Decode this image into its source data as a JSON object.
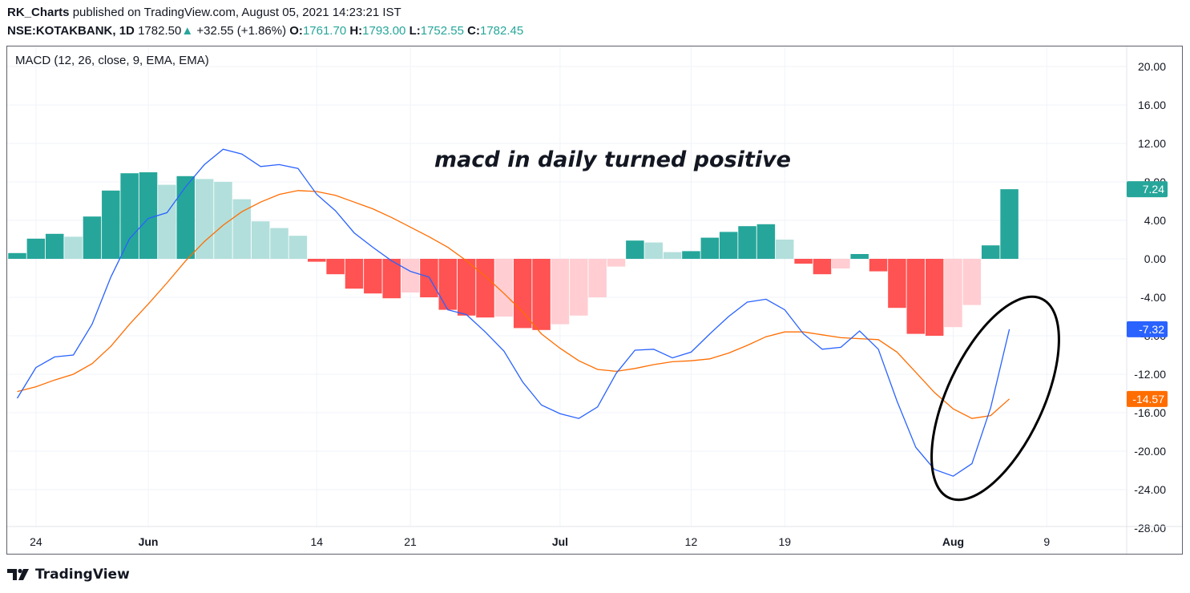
{
  "header": {
    "author": "RK_Charts",
    "published_text": " published on TradingView.com, August 05, 2021 14:23:21 IST",
    "symbol": "NSE:KOTAKBANK, 1D",
    "price": "1782.50",
    "change_arrow": "▲",
    "change": "+32.55 (+1.86%)",
    "open_label": "O:",
    "open": "1761.70",
    "high_label": "H:",
    "high": "1793.00",
    "low_label": "L:",
    "low": "1752.55",
    "close_label": "C:",
    "close": "1782.45"
  },
  "indicator_label": "MACD (12, 26, close, 9, EMA, EMA)",
  "annotation_text": "macd in daily turned positive",
  "footer": {
    "brand": "TradingView",
    "logo_icon": "tradingview-logo-icon"
  },
  "colors": {
    "macd_line": "#2962ff",
    "signal_line": "#ff6d00",
    "hist_pos_strong": "#26a69a",
    "hist_pos_weak": "#b2dfdb",
    "hist_neg_strong": "#ff5252",
    "hist_neg_weak": "#ffcdd2",
    "axis_text": "#131722",
    "grid": "#f0f3fa"
  },
  "chart_data": {
    "type": "bar+line",
    "title": "MACD (12, 26, close, 9, EMA, EMA)",
    "y_ticks": [
      "20.00",
      "16.00",
      "12.00",
      "8.00",
      "4.00",
      "0.00",
      "-4.00",
      "-8.00",
      "-12.00",
      "-16.00",
      "-20.00",
      "-24.00",
      "-28.00"
    ],
    "ylim": [
      -28,
      22
    ],
    "x_tick_labels": [
      {
        "label": "24",
        "bar": 1
      },
      {
        "label": "Jun",
        "bar": 7
      },
      {
        "label": "14",
        "bar": 16
      },
      {
        "label": "21",
        "bar": 21
      },
      {
        "label": "Jul",
        "bar": 29
      },
      {
        "label": "12",
        "bar": 36
      },
      {
        "label": "19",
        "bar": 41
      },
      {
        "label": "Aug",
        "bar": 50
      },
      {
        "label": "9",
        "bar": 55
      }
    ],
    "histogram": [
      0.6,
      2.1,
      2.6,
      2.3,
      4.4,
      7.1,
      8.9,
      9.0,
      7.7,
      8.6,
      8.3,
      8.0,
      6.2,
      3.9,
      3.2,
      2.4,
      -0.3,
      -1.6,
      -3.1,
      -3.6,
      -4.1,
      -3.5,
      -4.0,
      -5.3,
      -5.9,
      -6.1,
      -6.0,
      -7.2,
      -7.4,
      -6.8,
      -5.9,
      -4.0,
      -0.8,
      1.9,
      1.7,
      0.7,
      0.8,
      2.2,
      2.8,
      3.4,
      3.6,
      2.0,
      -0.5,
      -1.6,
      -1.0,
      0.5,
      -1.3,
      -5.1,
      -7.8,
      -8.0,
      -7.1,
      -4.8,
      1.4,
      7.24
    ],
    "hist_colors": [
      "S",
      "S",
      "S",
      "W",
      "S",
      "S",
      "S",
      "S",
      "W",
      "S",
      "W",
      "W",
      "W",
      "W",
      "W",
      "W",
      "S",
      "S",
      "S",
      "S",
      "S",
      "W",
      "S",
      "S",
      "S",
      "S",
      "W",
      "S",
      "S",
      "W",
      "W",
      "W",
      "W",
      "S",
      "W",
      "W",
      "S",
      "S",
      "S",
      "S",
      "S",
      "W",
      "S",
      "S",
      "W",
      "S",
      "S",
      "S",
      "S",
      "S",
      "W",
      "W",
      "S",
      "S"
    ],
    "macd": [
      -14.5,
      -11.3,
      -10.2,
      -10.0,
      -6.8,
      -1.9,
      2.1,
      4.2,
      4.8,
      7.5,
      9.8,
      11.4,
      10.9,
      9.6,
      9.8,
      9.4,
      6.7,
      5.0,
      2.7,
      1.2,
      -0.2,
      -1.3,
      -1.9,
      -5.3,
      -5.8,
      -7.6,
      -9.6,
      -12.8,
      -15.2,
      -16.1,
      -16.6,
      -15.4,
      -11.9,
      -9.5,
      -9.4,
      -10.3,
      -9.7,
      -7.8,
      -6.0,
      -4.5,
      -4.2,
      -5.3,
      -7.8,
      -9.4,
      -9.2,
      -7.5,
      -9.4,
      -14.8,
      -19.6,
      -21.9,
      -22.6,
      -21.3,
      -15.5,
      -7.32
    ],
    "signal": [
      -13.8,
      -13.3,
      -12.6,
      -12.0,
      -10.9,
      -9.1,
      -6.8,
      -4.7,
      -2.5,
      -0.2,
      1.8,
      3.5,
      4.9,
      5.9,
      6.7,
      7.1,
      7.0,
      6.6,
      5.9,
      5.2,
      4.3,
      3.3,
      2.3,
      1.2,
      -0.2,
      -1.8,
      -3.6,
      -5.5,
      -7.8,
      -9.3,
      -10.6,
      -11.5,
      -11.7,
      -11.4,
      -11.0,
      -10.7,
      -10.6,
      -10.4,
      -9.8,
      -9.0,
      -8.1,
      -7.6,
      -7.6,
      -7.9,
      -8.2,
      -8.3,
      -8.4,
      -9.7,
      -11.8,
      -13.9,
      -15.6,
      -16.6,
      -16.3,
      -14.57
    ],
    "last_values": {
      "histogram": "7.24",
      "macd": "-7.32",
      "signal": "-14.57"
    },
    "annotations": [
      "macd in daily turned positive"
    ]
  }
}
